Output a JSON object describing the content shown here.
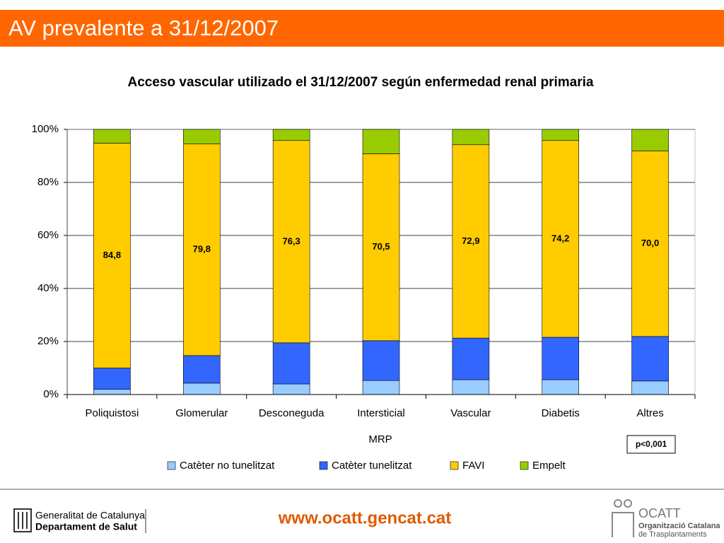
{
  "slide": {
    "header": "AV prevalente a 31/12/2007",
    "footer_left_1": "Generalitat de Catalunya",
    "footer_left_2": "Departament de Salut",
    "footer_url": "www.ocatt.gencat.cat",
    "footer_right_1": "OCATT",
    "footer_right_2": "Organització Catalana",
    "footer_right_3": "de Trasplantaments"
  },
  "chart_data": {
    "type": "stacked_bar",
    "title": "Acceso vascular utilizado el 31/12/2007 según enfermedad renal primaria",
    "x_label": "MRP",
    "annotation": "p<0,001",
    "categories": [
      "Poliquistosi",
      "Glomerular",
      "Desconeguda",
      "Intersticial",
      "Vascular",
      "Diabetis",
      "Altres"
    ],
    "series": [
      {
        "name": "Catèter no tunelitzat",
        "color": "#99ccff",
        "values": [
          2.0,
          4.3,
          4.0,
          5.3,
          5.6,
          5.6,
          5.1
        ]
      },
      {
        "name": "Catèter tunelitzat",
        "color": "#3366ff",
        "values": [
          8.0,
          10.4,
          15.5,
          15.0,
          15.7,
          16.0,
          16.8
        ]
      },
      {
        "name": "FAVI",
        "color": "#ffcc00",
        "values": [
          84.8,
          79.8,
          76.3,
          70.5,
          72.9,
          74.2,
          70.0
        ],
        "value_labels": [
          "84,8",
          "79,8",
          "76,3",
          "70,5",
          "72,9",
          "74,2",
          "70,0"
        ]
      },
      {
        "name": "Empelt",
        "color": "#99cc00",
        "values": [
          5.2,
          5.5,
          4.2,
          9.2,
          5.8,
          4.2,
          8.1
        ]
      }
    ],
    "ylim": [
      0,
      100
    ],
    "yticks": [
      {
        "value": 0,
        "label": "0%"
      },
      {
        "value": 20,
        "label": "20%"
      },
      {
        "value": 40,
        "label": "40%"
      },
      {
        "value": 60,
        "label": "60%"
      },
      {
        "value": 80,
        "label": "80%"
      },
      {
        "value": 100,
        "label": "100%"
      }
    ],
    "grid": true
  }
}
